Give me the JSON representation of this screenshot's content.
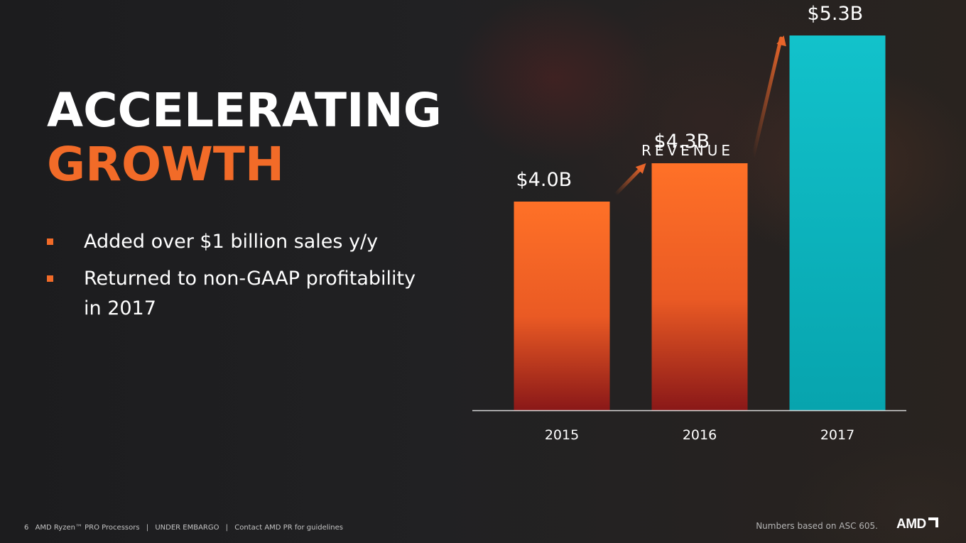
{
  "title": {
    "line1": "ACCELERATING",
    "line2": "GROWTH"
  },
  "bullets": [
    "Added over $1 billion sales y/y",
    "Returned to non-GAAP profitability in 2017"
  ],
  "footer": {
    "page": "6",
    "product": "AMD Ryzen™ PRO Processors",
    "sep": "|",
    "embargo": "UNDER EMBARGO",
    "contact": "Contact AMD PR for guidelines"
  },
  "note": "Numbers based on ASC 605.",
  "logo": "AMD",
  "colors": {
    "accent_orange": "#f26b28",
    "bar_orange_top": "#ff7127",
    "bar_red_bottom": "#8a1818",
    "bar_teal": "#0fbdc6",
    "arrow": "#e8652a"
  },
  "chart_data": {
    "type": "bar",
    "title": "REVENUE",
    "categories": [
      "2015",
      "2016",
      "2017"
    ],
    "values": [
      4.0,
      4.3,
      5.3
    ],
    "value_labels": [
      "$4.0B",
      "$4.3B",
      "$5.3B"
    ],
    "unit": "$B",
    "grid": false,
    "growth_arrows": true
  }
}
